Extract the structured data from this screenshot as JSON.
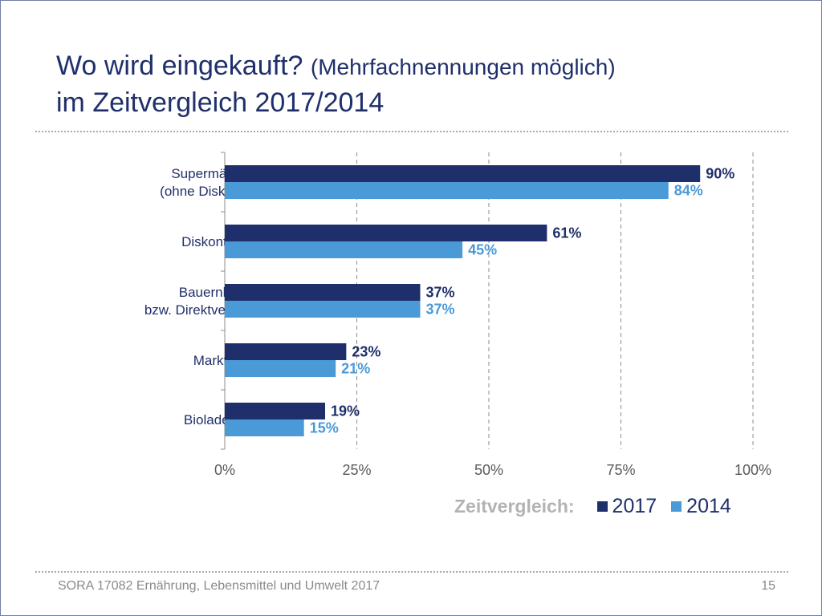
{
  "slide": {
    "title_main": "Wo wird eingekauft?",
    "title_sub": "(Mehrfachnennungen möglich)",
    "title_line2": "im Zeitvergleich 2017/2014",
    "footer": "SORA 17082 Ernährung, Lebensmittel und Umwelt 2017",
    "page_number": "15"
  },
  "legend": {
    "title": "Zeitvergleich:",
    "items": [
      {
        "label": "2017",
        "color": "#1f2f6b"
      },
      {
        "label": "2014",
        "color": "#4a9ad8"
      }
    ]
  },
  "chart_data": {
    "type": "bar",
    "orientation": "horizontal",
    "categories": [
      [
        "Supermärkte",
        "(ohne Diskonter)"
      ],
      [
        "Diskonter"
      ],
      [
        "Bauernhof",
        "bzw. Direktvermarkter"
      ],
      [
        "Markt"
      ],
      [
        "Bioladen"
      ]
    ],
    "series": [
      {
        "name": "2017",
        "values": [
          90,
          61,
          37,
          23,
          19
        ],
        "color": "#1f2f6b"
      },
      {
        "name": "2014",
        "values": [
          84,
          45,
          37,
          21,
          15
        ],
        "color": "#4a9ad8"
      }
    ],
    "value_suffix": "%",
    "xlim": [
      0,
      100
    ],
    "xticks": [
      0,
      25,
      50,
      75,
      100
    ],
    "xtick_labels": [
      "0%",
      "25%",
      "50%",
      "75%",
      "100%"
    ],
    "grid": "vertical dashed",
    "legend_position": "bottom-right"
  }
}
